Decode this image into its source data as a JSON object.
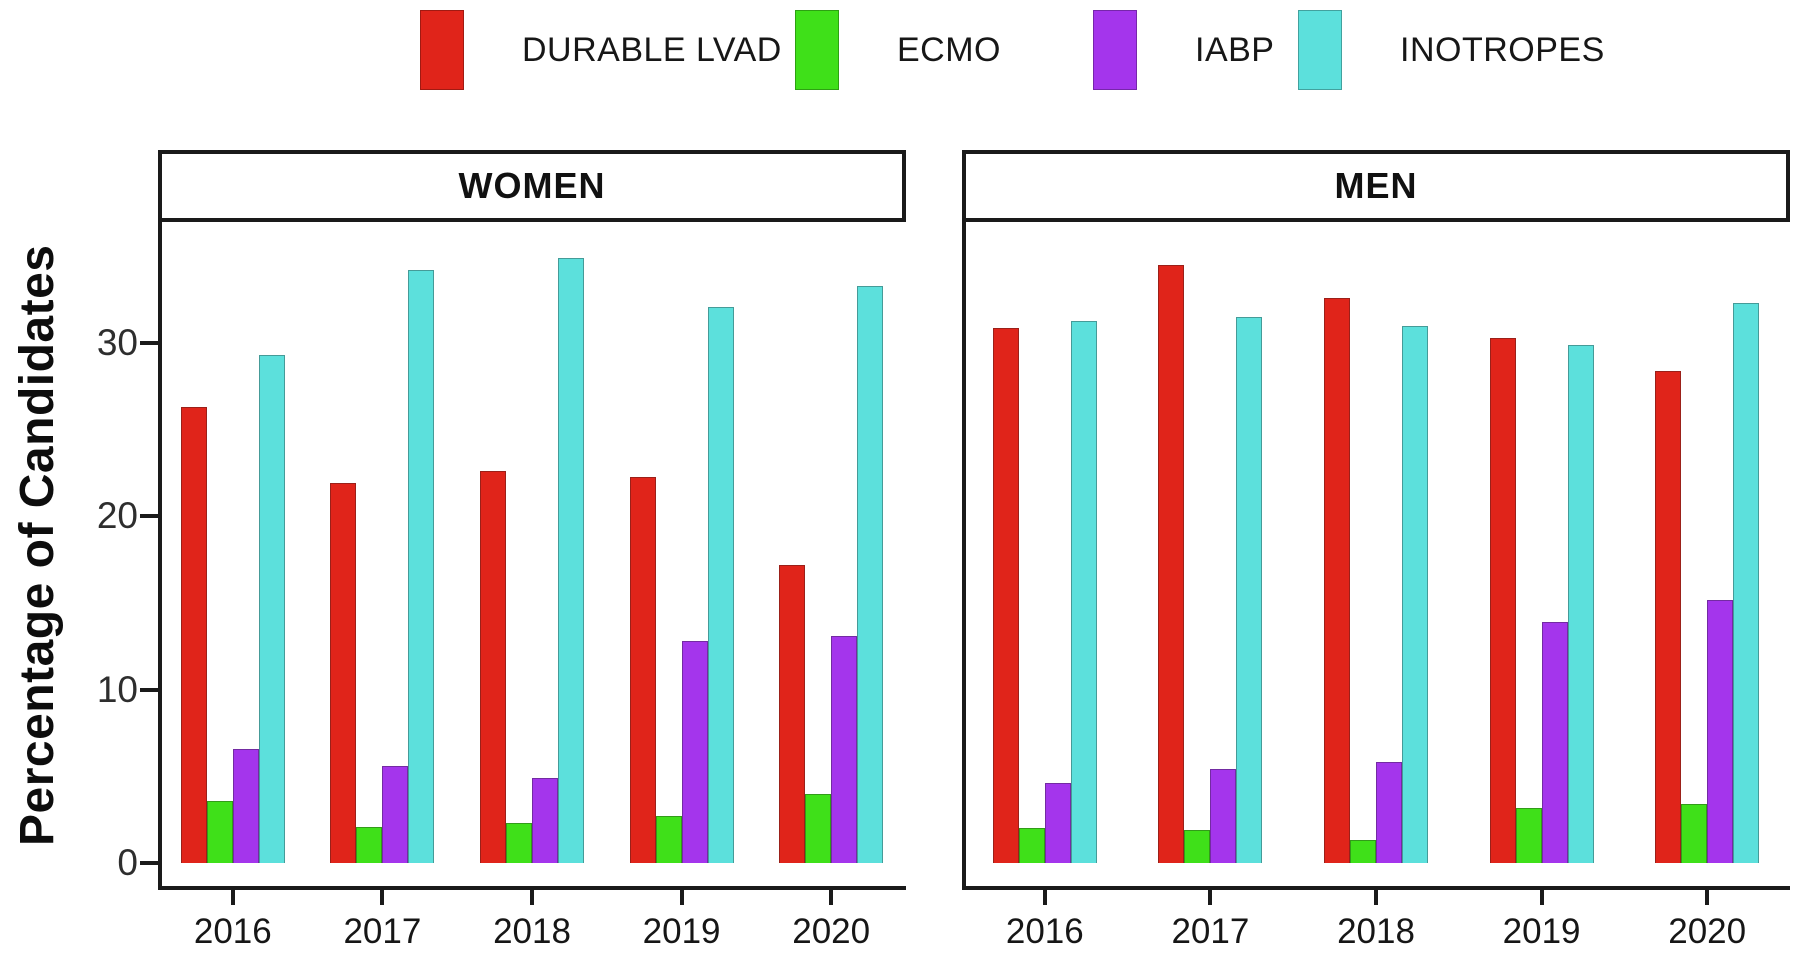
{
  "chart_data": {
    "type": "bar",
    "title": "",
    "ylabel": "Percentage of Candidates",
    "categories": [
      "2016",
      "2017",
      "2018",
      "2019",
      "2020"
    ],
    "yticks": [
      0,
      10,
      20,
      30
    ],
    "ylim": [
      0,
      37
    ],
    "grid": false,
    "legend_position": "top",
    "legend": [
      {
        "label": "DURABLE LVAD",
        "color": "#E0241A"
      },
      {
        "label": "ECMO",
        "color": "#3FE019"
      },
      {
        "label": "IABP",
        "color": "#A435EC"
      },
      {
        "label": "INOTROPES",
        "color": "#5CE0DC"
      }
    ],
    "panels": [
      {
        "label": "WOMEN",
        "series": [
          {
            "name": "DURABLE LVAD",
            "color": "#E0241A",
            "values": [
              26.3,
              21.9,
              22.6,
              22.3,
              17.2
            ]
          },
          {
            "name": "ECMO",
            "color": "#3FE019",
            "values": [
              3.6,
              2.1,
              2.3,
              2.7,
              4.0
            ]
          },
          {
            "name": "IABP",
            "color": "#A435EC",
            "values": [
              6.6,
              5.6,
              4.9,
              12.8,
              13.1
            ]
          },
          {
            "name": "INOTROPES",
            "color": "#5CE0DC",
            "values": [
              29.3,
              34.2,
              34.9,
              32.1,
              33.3
            ]
          }
        ]
      },
      {
        "label": "MEN",
        "series": [
          {
            "name": "DURABLE LVAD",
            "color": "#E0241A",
            "values": [
              30.9,
              34.5,
              32.6,
              30.3,
              28.4
            ]
          },
          {
            "name": "ECMO",
            "color": "#3FE019",
            "values": [
              2.0,
              1.9,
              1.3,
              3.2,
              3.4
            ]
          },
          {
            "name": "IABP",
            "color": "#A435EC",
            "values": [
              4.6,
              5.4,
              5.8,
              13.9,
              15.2
            ]
          },
          {
            "name": "INOTROPES",
            "color": "#5CE0DC",
            "values": [
              31.3,
              31.5,
              31.0,
              29.9,
              32.3
            ]
          }
        ]
      }
    ]
  }
}
